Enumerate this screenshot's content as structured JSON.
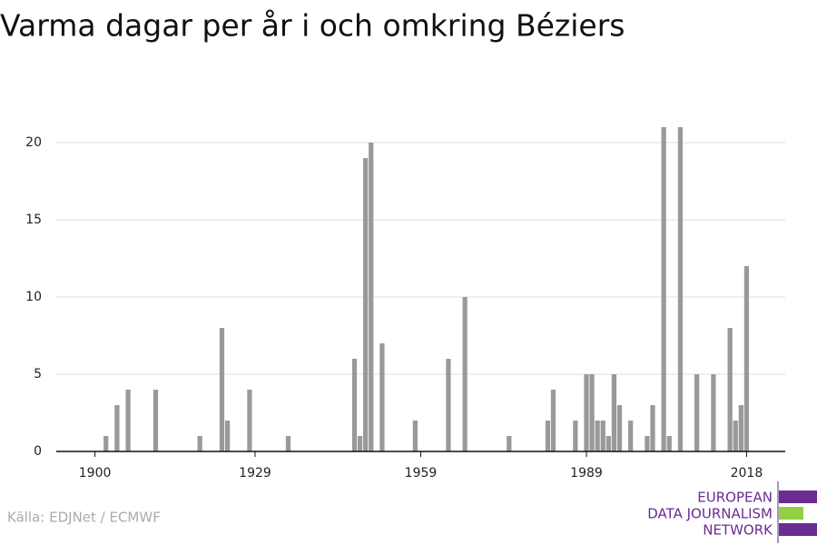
{
  "chart_data": {
    "type": "bar",
    "title": "Varma dagar per år i och omkring Béziers",
    "x": [
      1902,
      1904,
      1906,
      1911,
      1919,
      1923,
      1924,
      1928,
      1935,
      1947,
      1948,
      1949,
      1950,
      1952,
      1958,
      1964,
      1967,
      1975,
      1982,
      1983,
      1987,
      1989,
      1990,
      1991,
      1992,
      1993,
      1994,
      1995,
      1997,
      2000,
      2001,
      2003,
      2004,
      2006,
      2009,
      2012,
      2015,
      2016,
      2017,
      2018
    ],
    "values": [
      1,
      3,
      4,
      4,
      1,
      8,
      2,
      4,
      1,
      6,
      1,
      19,
      20,
      7,
      2,
      6,
      10,
      1,
      2,
      4,
      2,
      5,
      5,
      2,
      2,
      1,
      5,
      3,
      2,
      1,
      3,
      21,
      1,
      21,
      5,
      5,
      8,
      2,
      3,
      12
    ],
    "color": "#999999",
    "xlim": [
      1893,
      2025
    ],
    "xticks": [
      1900,
      1929,
      1959,
      1989,
      2018
    ],
    "ylim": [
      0,
      22
    ],
    "yticks": [
      0,
      5,
      10,
      15,
      20
    ],
    "grid": true,
    "source": "Källa: EDJNet / ECMWF",
    "logo": [
      "EUROPEAN",
      "DATA JOURNALISM",
      "NETWORK"
    ]
  }
}
